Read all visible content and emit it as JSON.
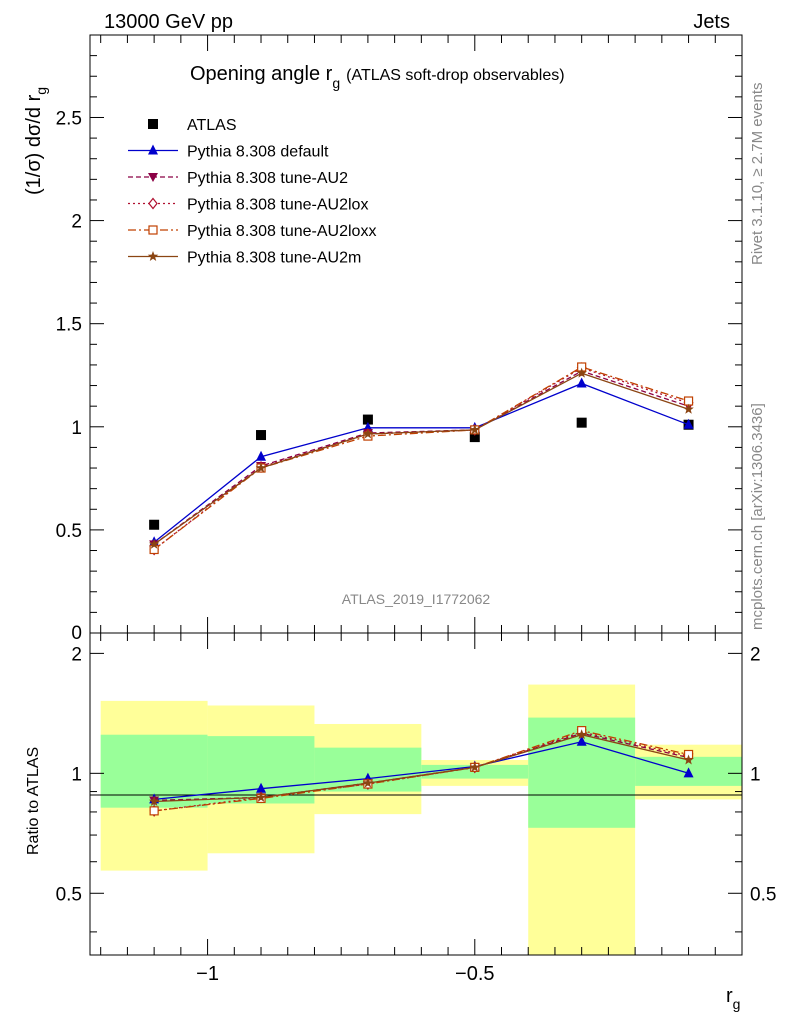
{
  "header": {
    "left": "13000 GeV pp",
    "right": "Jets"
  },
  "side_labels": {
    "rivet": "Rivet 3.1.10, ≥ 2.7M events",
    "mcplots": "mcplots.cern.ch [arXiv:1306.3436]"
  },
  "colors": {
    "data": "#000000",
    "default": "#0000cc",
    "tune_au2": "#8b0045",
    "tune_au2lox": "#b01030",
    "tune_au2loxx": "#c04000",
    "tune_au2m": "#8b4513",
    "band_inner": "#99ff99",
    "band_outer": "#ffff99"
  },
  "chart_data": [
    {
      "type": "line",
      "title_main": "Opening angle r",
      "title_sub": "g",
      "title_rest": "(ATLAS soft-drop observables)",
      "ylabel": "(1/σ) dσ/d r",
      "ylabel_sub": "g",
      "watermark": "ATLAS_2019_I1772062",
      "ylim": [
        0,
        2.9
      ],
      "yticks": [
        0.5,
        1,
        1.5,
        2,
        2.5
      ],
      "ytick_labels": [
        "0.5",
        "1",
        "1.5",
        "2",
        "2.5"
      ],
      "y_bottom_label": "0",
      "legend_position": "top-left",
      "x": [
        -1.1,
        -0.9,
        -0.7,
        -0.5,
        -0.3,
        -0.1
      ],
      "series": [
        {
          "name": "ATLAS",
          "key": "data",
          "marker": "square-filled",
          "dash": "",
          "values": [
            0.525,
            0.96,
            1.035,
            0.95,
            1.02,
            1.01
          ]
        },
        {
          "name": "Pythia 8.308 default",
          "key": "default",
          "marker": "triangle-up",
          "dash": "",
          "values": [
            0.44,
            0.855,
            0.995,
            0.995,
            1.21,
            1.01
          ]
        },
        {
          "name": "Pythia 8.308 tune-AU2",
          "key": "tune_au2",
          "marker": "triangle-down",
          "dash": "5,3",
          "values": [
            0.43,
            0.81,
            0.97,
            0.985,
            1.27,
            1.1
          ]
        },
        {
          "name": "Pythia 8.308 tune-AU2lox",
          "key": "tune_au2lox",
          "marker": "diamond-open",
          "dash": "2,3",
          "values": [
            0.405,
            0.805,
            0.965,
            0.985,
            1.285,
            1.115
          ]
        },
        {
          "name": "Pythia 8.308 tune-AU2loxx",
          "key": "tune_au2loxx",
          "marker": "square-open",
          "dash": "8,3,2,3",
          "values": [
            0.405,
            0.8,
            0.955,
            0.985,
            1.29,
            1.125
          ]
        },
        {
          "name": "Pythia 8.308 tune-AU2m",
          "key": "tune_au2m",
          "marker": "star",
          "dash": "",
          "values": [
            0.43,
            0.8,
            0.965,
            0.985,
            1.26,
            1.085
          ]
        }
      ]
    },
    {
      "type": "line",
      "ylabel": "Ratio to ATLAS",
      "xlabel": "r",
      "xlabel_sub": "g",
      "xlim": [
        -1.22,
        -0.0
      ],
      "ylim": [
        0.35,
        2.25
      ],
      "xticks": [
        -1,
        -0.5
      ],
      "xtick_labels": [
        "−1",
        "−0.5"
      ],
      "yticks": [
        0.5,
        1,
        2
      ],
      "ytick_labels": [
        "0.5",
        "1",
        "2"
      ],
      "bins": [
        [
          -1.2,
          -1.0
        ],
        [
          -1.0,
          -0.8
        ],
        [
          -0.8,
          -0.6
        ],
        [
          -0.6,
          -0.4
        ],
        [
          -0.4,
          -0.2
        ],
        [
          -0.2,
          -0.0
        ]
      ],
      "band_inner": [
        [
          0.82,
          1.25
        ],
        [
          0.84,
          1.24
        ],
        [
          0.9,
          1.16
        ],
        [
          0.97,
          1.05
        ],
        [
          0.73,
          1.38
        ],
        [
          0.93,
          1.1
        ]
      ],
      "band_outer": [
        [
          0.57,
          1.52
        ],
        [
          0.63,
          1.48
        ],
        [
          0.79,
          1.33
        ],
        [
          0.93,
          1.08
        ],
        [
          0.33,
          1.67
        ],
        [
          0.86,
          1.18
        ]
      ],
      "x": [
        -1.1,
        -0.9,
        -0.7,
        -0.5,
        -0.3,
        -0.1
      ],
      "series": [
        {
          "name": "Pythia 8.308 default",
          "key": "default",
          "marker": "triangle-up",
          "dash": "",
          "values": [
            0.86,
            0.915,
            0.97,
            1.04,
            1.2,
            1.0
          ]
        },
        {
          "name": "Pythia 8.308 tune-AU2",
          "key": "tune_au2",
          "marker": "triangle-down",
          "dash": "5,3",
          "values": [
            0.855,
            0.87,
            0.945,
            1.035,
            1.26,
            1.095
          ]
        },
        {
          "name": "Pythia 8.308 tune-AU2lox",
          "key": "tune_au2lox",
          "marker": "diamond-open",
          "dash": "2,3",
          "values": [
            0.805,
            0.87,
            0.94,
            1.035,
            1.27,
            1.105
          ]
        },
        {
          "name": "Pythia 8.308 tune-AU2loxx",
          "key": "tune_au2loxx",
          "marker": "square-open",
          "dash": "8,3,2,3",
          "values": [
            0.805,
            0.865,
            0.94,
            1.035,
            1.28,
            1.115
          ]
        },
        {
          "name": "Pythia 8.308 tune-AU2m",
          "key": "tune_au2m",
          "marker": "star",
          "dash": "",
          "values": [
            0.85,
            0.87,
            0.945,
            1.035,
            1.25,
            1.08
          ]
        }
      ]
    }
  ]
}
